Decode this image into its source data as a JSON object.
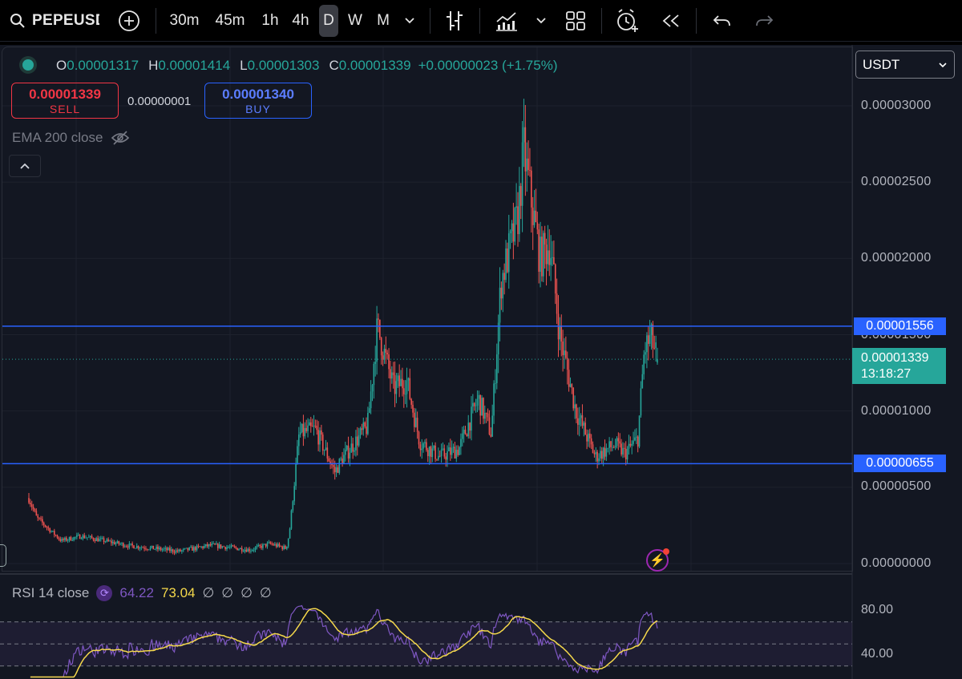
{
  "toolbar": {
    "symbol": "PEPEUSDT",
    "timeframes": [
      "30m",
      "45m",
      "1h",
      "4h",
      "D",
      "W",
      "M"
    ],
    "active_timeframe": "D",
    "icons": [
      "search-icon",
      "add-icon",
      "chevron-down-icon",
      "bar-type-icon",
      "indicators-icon",
      "chevron-down-icon",
      "layout-icon",
      "alert-icon",
      "replay-icon",
      "undo-icon",
      "redo-icon"
    ]
  },
  "legend": {
    "o_label": "O",
    "o": "0.00001317",
    "h_label": "H",
    "h": "0.00001414",
    "l_label": "L",
    "l": "0.00001303",
    "c_label": "C",
    "c": "0.00001339",
    "change": "+0.00000023 (+1.75%)"
  },
  "trade": {
    "sell_price": "0.00001339",
    "sell_label": "SELL",
    "spread": "0.00000001",
    "buy_price": "0.00001340",
    "buy_label": "BUY"
  },
  "ema_label": "EMA 200 close",
  "currency": "USDT",
  "price_axis": {
    "labels": [
      "0.00003000",
      "0.00002500",
      "0.00002000",
      "0.00001500",
      "0.00001000",
      "0.00000500",
      "0.00000000"
    ],
    "values": [
      3e-05,
      2.5e-05,
      2e-05,
      1.5e-05,
      1e-05,
      5e-06,
      0
    ]
  },
  "horizontal_lines": [
    {
      "label": "0.00001556",
      "value": 1.556e-05
    },
    {
      "label": "0.00000655",
      "value": 6.55e-06
    }
  ],
  "current_price": {
    "label": "0.00001339",
    "countdown": "13:18:27",
    "value": 1.339e-05
  },
  "rsi": {
    "name": "RSI 14 close",
    "value": "64.22",
    "ma_value": "73.04",
    "extra": [
      "∅",
      "∅",
      "∅",
      "∅"
    ],
    "axis_labels": [
      "80.00",
      "40.00"
    ],
    "levels": [
      70,
      50,
      30
    ]
  },
  "colors": {
    "up": "#26a69a",
    "down": "#ef5350",
    "hline": "#2962ff",
    "rsi": "#7e57c2",
    "rsi_ma": "#f5d94b",
    "bg": "#131722"
  },
  "chart_data": {
    "type": "candlestick",
    "symbol": "PEPEUSDT",
    "interval": "D",
    "ylim": [
      0,
      3.25e-05
    ],
    "yscale": "linear",
    "waypoints": [
      {
        "t": 0.0,
        "v": 4.3e-06
      },
      {
        "t": 0.012,
        "v": 3e-06
      },
      {
        "t": 0.05,
        "v": 1.5e-06
      },
      {
        "t": 0.08,
        "v": 1.8e-06
      },
      {
        "t": 0.15,
        "v": 1.2e-06
      },
      {
        "t": 0.23,
        "v": 8e-07
      },
      {
        "t": 0.28,
        "v": 1.2e-06
      },
      {
        "t": 0.34,
        "v": 9e-07
      },
      {
        "t": 0.37,
        "v": 1.3e-06
      },
      {
        "t": 0.395,
        "v": 1e-06
      },
      {
        "t": 0.4,
        "v": 2e-06
      },
      {
        "t": 0.415,
        "v": 8.5e-06
      },
      {
        "t": 0.44,
        "v": 8.8e-06
      },
      {
        "t": 0.47,
        "v": 6e-06
      },
      {
        "t": 0.48,
        "v": 6.8e-06
      },
      {
        "t": 0.52,
        "v": 9e-06
      },
      {
        "t": 0.535,
        "v": 1.55e-05
      },
      {
        "t": 0.56,
        "v": 1.15e-05
      },
      {
        "t": 0.58,
        "v": 1.2e-05
      },
      {
        "t": 0.6,
        "v": 8e-06
      },
      {
        "t": 0.63,
        "v": 7e-06
      },
      {
        "t": 0.66,
        "v": 7.5e-06
      },
      {
        "t": 0.69,
        "v": 1.08e-05
      },
      {
        "t": 0.71,
        "v": 8.5e-06
      },
      {
        "t": 0.725,
        "v": 1.85e-05
      },
      {
        "t": 0.75,
        "v": 2.25e-05
      },
      {
        "t": 0.76,
        "v": 2.7e-05
      },
      {
        "t": 0.785,
        "v": 2e-05
      },
      {
        "t": 0.8,
        "v": 2.1e-05
      },
      {
        "t": 0.815,
        "v": 1.5e-05
      },
      {
        "t": 0.84,
        "v": 1e-05
      },
      {
        "t": 0.87,
        "v": 7e-06
      },
      {
        "t": 0.9,
        "v": 7.8e-06
      },
      {
        "t": 0.915,
        "v": 7.2e-06
      },
      {
        "t": 0.935,
        "v": 8.2e-06
      },
      {
        "t": 0.945,
        "v": 1.4e-05
      },
      {
        "t": 0.955,
        "v": 1.48e-05
      },
      {
        "t": 0.965,
        "v": 1.34e-05
      }
    ],
    "last": {
      "open": 1.317e-05,
      "high": 1.414e-05,
      "low": 1.303e-05,
      "close": 1.339e-05
    }
  }
}
